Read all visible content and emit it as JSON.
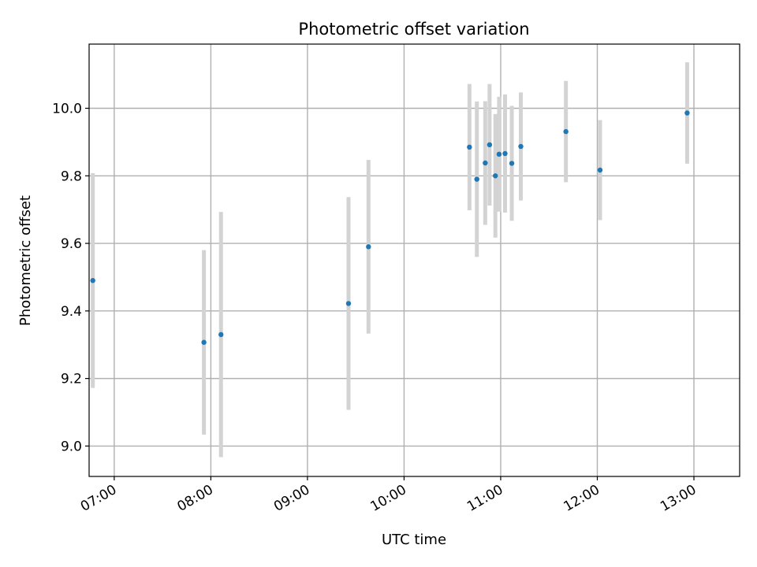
{
  "chart_data": {
    "type": "scatter",
    "title": "Photometric offset variation",
    "xlabel": "UTC time",
    "ylabel": "Photometric offset",
    "x_tick_labels": [
      "07:00",
      "08:00",
      "09:00",
      "10:00",
      "11:00",
      "12:00",
      "13:00"
    ],
    "y_tick_labels": [
      "9.0",
      "9.2",
      "9.4",
      "9.6",
      "9.8",
      "10.0"
    ],
    "x_ticks_minutes": [
      420,
      480,
      540,
      600,
      660,
      720,
      780
    ],
    "y_ticks": [
      9.0,
      9.2,
      9.4,
      9.6,
      9.8,
      10.0
    ],
    "xlim_minutes": [
      404.4,
      808.4
    ],
    "ylim": [
      8.91,
      10.19
    ],
    "grid": true,
    "series": [
      {
        "point_color": "#1f77b4",
        "errorbar_color": "#d3d3d3",
        "points": [
          {
            "t": 406.7,
            "y": 9.49,
            "err": 0.318
          },
          {
            "t": 475.7,
            "y": 9.307,
            "err": 0.273
          },
          {
            "t": 486.3,
            "y": 9.33,
            "err": 0.363
          },
          {
            "t": 565.5,
            "y": 9.422,
            "err": 0.315
          },
          {
            "t": 577.9,
            "y": 9.59,
            "err": 0.257
          },
          {
            "t": 640.6,
            "y": 9.885,
            "err": 0.187
          },
          {
            "t": 645.2,
            "y": 9.79,
            "err": 0.23
          },
          {
            "t": 650.4,
            "y": 9.838,
            "err": 0.183
          },
          {
            "t": 653.1,
            "y": 9.892,
            "err": 0.18
          },
          {
            "t": 656.7,
            "y": 9.8,
            "err": 0.183
          },
          {
            "t": 659.0,
            "y": 9.864,
            "err": 0.17
          },
          {
            "t": 662.7,
            "y": 9.866,
            "err": 0.175
          },
          {
            "t": 666.9,
            "y": 9.837,
            "err": 0.17
          },
          {
            "t": 672.5,
            "y": 9.887,
            "err": 0.16
          },
          {
            "t": 700.5,
            "y": 9.931,
            "err": 0.15
          },
          {
            "t": 721.7,
            "y": 9.817,
            "err": 0.148
          },
          {
            "t": 775.8,
            "y": 9.986,
            "err": 0.15
          }
        ]
      }
    ]
  }
}
